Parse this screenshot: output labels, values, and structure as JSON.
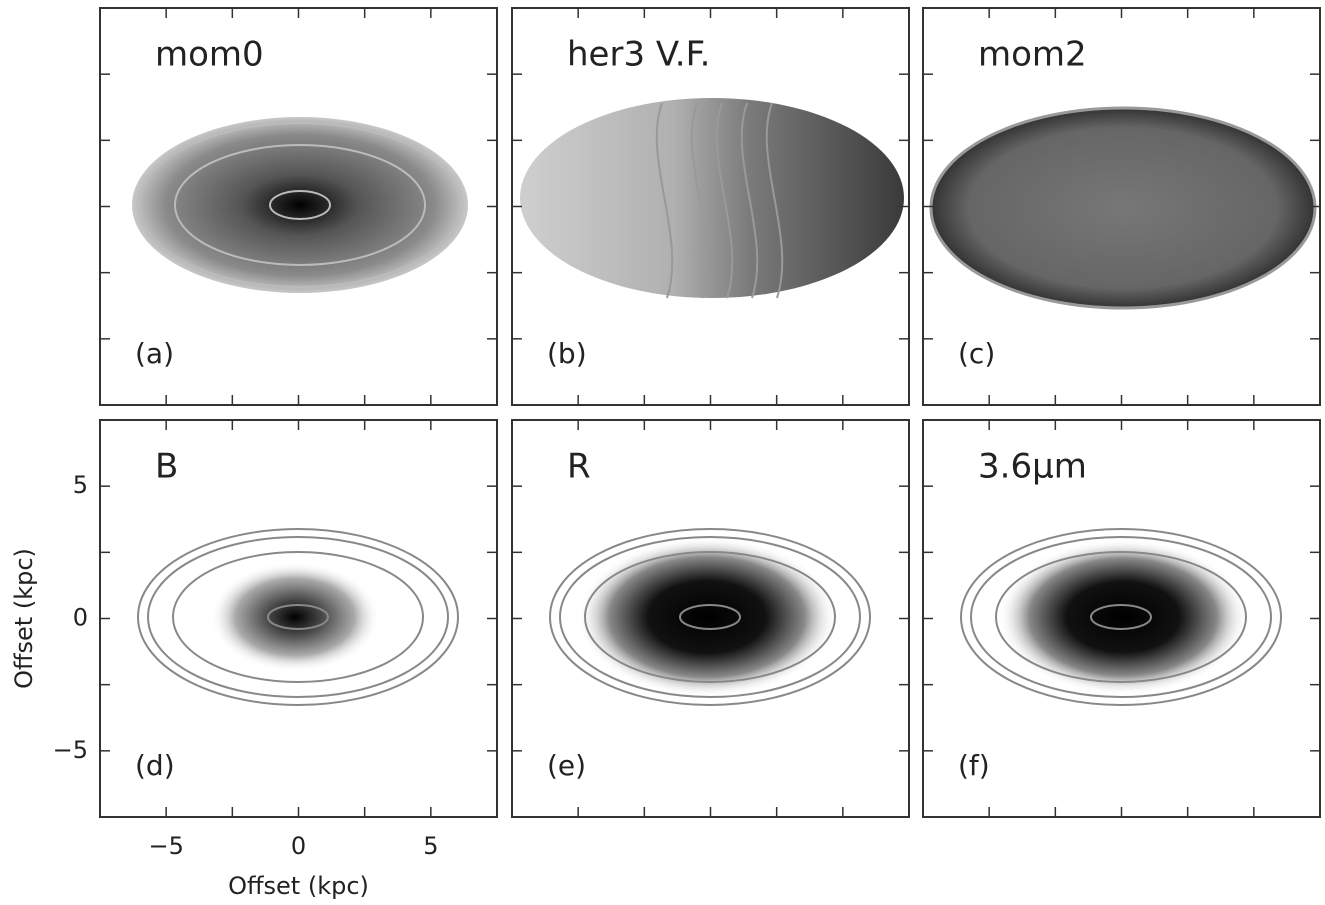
{
  "axes": {
    "xlim": [
      -7.5,
      7.5
    ],
    "ylim": [
      -7.5,
      7.5
    ],
    "xticks": [
      {
        "value": -5,
        "label": "−5"
      },
      0,
      5
    ],
    "yticks": [
      {
        "value": -5,
        "label": "−5"
      },
      0,
      5
    ],
    "minor_ticks": [
      -2.5,
      2.5
    ],
    "x_label": "Offset (kpc)",
    "y_label": "Offset (kpc)"
  },
  "panels": [
    {
      "title": "mom0",
      "tag": "(a)"
    },
    {
      "title": "her3 V.F.",
      "tag": "(b)"
    },
    {
      "title": "mom2",
      "tag": "(c)"
    },
    {
      "title": "B",
      "tag": "(d)"
    },
    {
      "title": "R",
      "tag": "(e)"
    },
    {
      "title": "3.6μm",
      "tag": "(f)"
    }
  ]
}
